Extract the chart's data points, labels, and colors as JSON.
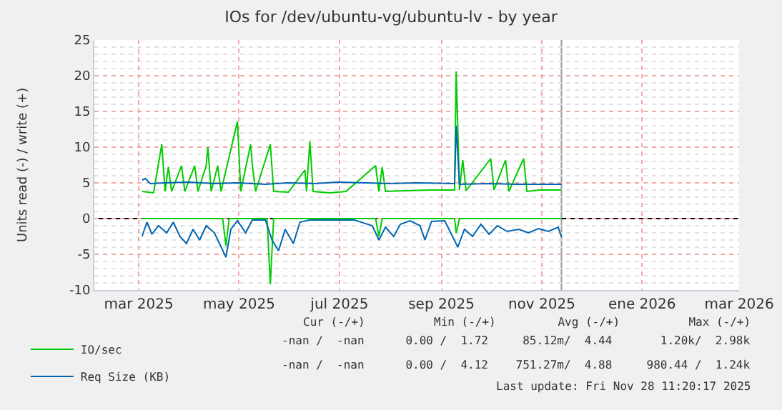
{
  "chart_data": {
    "type": "line",
    "title": "IOs for /dev/ubuntu-vg/ubuntu-lv - by year",
    "ylabel": "Units read (-) / write (+)",
    "xlim": [
      "2025-02-17",
      "2026-03-16"
    ],
    "xticks": [
      {
        "value": "2025-03-16",
        "label": "mar 2025"
      },
      {
        "value": "2025-05-16",
        "label": "may 2025"
      },
      {
        "value": "2025-07-16",
        "label": "jul 2025"
      },
      {
        "value": "2025-09-16",
        "label": "sep 2025"
      },
      {
        "value": "2025-11-16",
        "label": "nov 2025"
      },
      {
        "value": "2026-01-16",
        "label": "ene 2026"
      },
      {
        "value": "2026-03-16",
        "label": "mar 2026"
      }
    ],
    "ylim": [
      -10,
      25
    ],
    "yticks": [
      -10,
      -5,
      0,
      5,
      10,
      15,
      20,
      25
    ],
    "grid": true,
    "legend": "bottom left",
    "marker": "none",
    "line_style": "solid",
    "ref_lines": [
      {
        "axis": "x",
        "value": "2025-11-28",
        "color": "#999999"
      },
      {
        "axis": "y",
        "value": 0,
        "color": "#000000"
      }
    ],
    "series": [
      {
        "name": "IO/sec",
        "color": "#00cc00",
        "x": [
          "2025-03-18",
          "2025-03-25",
          "2025-03-30",
          "2025-04-01",
          "2025-04-03",
          "2025-04-05",
          "2025-04-11",
          "2025-04-13",
          "2025-04-19",
          "2025-04-21",
          "2025-04-26",
          "2025-04-27",
          "2025-04-29",
          "2025-05-03",
          "2025-05-05",
          "2025-05-15",
          "2025-05-17",
          "2025-05-23",
          "2025-05-24",
          "2025-05-26",
          "2025-06-04",
          "2025-06-06",
          "2025-06-15",
          "2025-06-25",
          "2025-06-26",
          "2025-06-28",
          "2025-06-30",
          "2025-07-10",
          "2025-07-20",
          "2025-08-07",
          "2025-08-09",
          "2025-08-11",
          "2025-08-13",
          "2025-08-25",
          "2025-09-10",
          "2025-09-24",
          "2025-09-25",
          "2025-09-27",
          "2025-09-29",
          "2025-10-01",
          "2025-10-16",
          "2025-10-18",
          "2025-10-25",
          "2025-10-27",
          "2025-11-05",
          "2025-11-07",
          "2025-11-15",
          "2025-11-28"
        ],
        "values": [
          3.8,
          3.6,
          10.4,
          3.8,
          7.2,
          3.8,
          7.4,
          3.8,
          7.4,
          3.8,
          7.4,
          10.0,
          3.8,
          7.4,
          3.8,
          13.6,
          3.8,
          10.4,
          7.6,
          3.8,
          10.4,
          3.8,
          3.7,
          6.8,
          3.8,
          10.8,
          3.8,
          3.6,
          3.8,
          7.4,
          3.8,
          7.2,
          3.8,
          3.9,
          4.0,
          4.0,
          20.6,
          4.0,
          8.2,
          3.9,
          8.4,
          4.0,
          8.2,
          3.8,
          8.4,
          3.8,
          4.0,
          4.0
        ]
      },
      {
        "color": "#00cc00",
        "x": [
          "2025-03-18",
          "2025-05-06",
          "2025-05-08",
          "2025-05-10",
          "2025-06-02",
          "2025-06-04",
          "2025-06-06",
          "2025-08-07",
          "2025-08-09",
          "2025-08-11",
          "2025-09-24",
          "2025-09-25",
          "2025-09-27",
          "2025-11-28"
        ],
        "values": [
          0,
          0,
          -3.8,
          0,
          0,
          -9.2,
          0,
          0,
          -2.5,
          0,
          0,
          -2.0,
          0,
          0
        ]
      },
      {
        "name": "Req Size (KB)",
        "color": "#0066b3",
        "x": [
          "2025-03-18",
          "2025-03-20",
          "2025-03-23",
          "2025-04-01",
          "2025-04-15",
          "2025-05-01",
          "2025-05-15",
          "2025-06-01",
          "2025-06-15",
          "2025-07-01",
          "2025-07-15",
          "2025-08-01",
          "2025-08-15",
          "2025-09-01",
          "2025-09-24",
          "2025-09-25",
          "2025-09-27",
          "2025-10-15",
          "2025-11-01",
          "2025-11-28"
        ],
        "values": [
          5.4,
          5.6,
          4.9,
          5.0,
          5.1,
          4.9,
          5.0,
          4.8,
          5.0,
          4.9,
          5.1,
          5.0,
          4.9,
          5.0,
          4.9,
          13.0,
          4.8,
          4.9,
          4.8,
          4.8
        ]
      },
      {
        "color": "#0066b3",
        "x": [
          "2025-03-18",
          "2025-03-21",
          "2025-03-24",
          "2025-03-28",
          "2025-04-02",
          "2025-04-06",
          "2025-04-10",
          "2025-04-14",
          "2025-04-18",
          "2025-04-22",
          "2025-04-26",
          "2025-05-01",
          "2025-05-08",
          "2025-05-11",
          "2025-05-15",
          "2025-05-20",
          "2025-05-24",
          "2025-06-01",
          "2025-06-05",
          "2025-06-09",
          "2025-06-13",
          "2025-06-18",
          "2025-06-22",
          "2025-06-28",
          "2025-07-10",
          "2025-07-25",
          "2025-08-05",
          "2025-08-09",
          "2025-08-13",
          "2025-08-18",
          "2025-08-22",
          "2025-08-28",
          "2025-09-03",
          "2025-09-06",
          "2025-09-10",
          "2025-09-18",
          "2025-09-26",
          "2025-09-30",
          "2025-10-05",
          "2025-10-10",
          "2025-10-15",
          "2025-10-20",
          "2025-10-26",
          "2025-11-02",
          "2025-11-08",
          "2025-11-14",
          "2025-11-20",
          "2025-11-26",
          "2025-11-28"
        ],
        "values": [
          -2.5,
          -0.5,
          -2.2,
          -1.0,
          -2.0,
          -0.5,
          -2.5,
          -3.5,
          -1.5,
          -3.0,
          -1.0,
          -2.0,
          -5.4,
          -1.5,
          -0.3,
          -2.0,
          -0.2,
          -0.2,
          -3.0,
          -4.5,
          -1.5,
          -3.5,
          -0.5,
          -0.2,
          -0.2,
          -0.2,
          -1.0,
          -3.0,
          -1.2,
          -2.5,
          -0.8,
          -0.3,
          -1.0,
          -3.0,
          -0.4,
          -0.3,
          -4.0,
          -1.5,
          -2.5,
          -0.8,
          -2.2,
          -1.0,
          -1.8,
          -1.5,
          -2.0,
          -1.4,
          -1.8,
          -1.2,
          -2.6
        ]
      }
    ],
    "annotations": [
      "Cur (-/+)          Min (-/+)         Avg (-/+)          Max (-/+)",
      "-nan /  -nan      0.00 /  1.72     85.12m/  4.44       1.20k/  2.98k",
      "-nan /  -nan      0.00 /  4.12    751.27m/  4.88     980.44 /  1.24k",
      "Last update: Fri Nov 28 11:20:17 2025"
    ]
  }
}
